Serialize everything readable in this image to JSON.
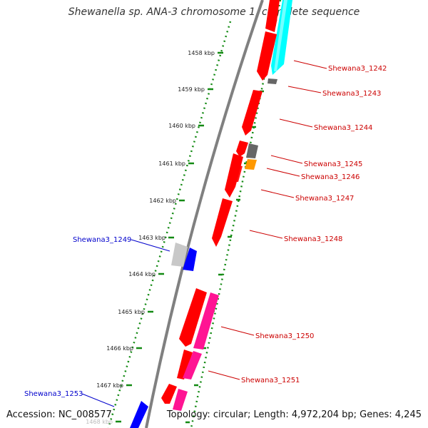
{
  "title": "Shewanella sp. ANA-3 chromosome 1, complete sequence",
  "accession": "Accession: NC_008577",
  "topology": "Topology: circular; Length: 4,972,204 bp; Genes: 4,245",
  "colors": {
    "cds_forward": "#ff0000",
    "cds_reverse": "#ff1493",
    "blue_gene": "#0000ff",
    "cyan_gene": "#00ffff",
    "gray_gene": "#777777",
    "light_gray_gene": "#c8c8c8",
    "orange_gene": "#ff9900",
    "tick_color": "#138a13",
    "label_red": "#cc0000",
    "label_blue": "#0000cc",
    "backbone": "#808080"
  },
  "scale": {
    "unit": "kbp",
    "ticks": [
      "1458 kbp",
      "1459 kbp",
      "1460 kbp",
      "1461 kbp",
      "1462 kbp",
      "1463 kbp",
      "1464 kbp",
      "1465 kbp",
      "1466 kbp",
      "1467 kbp",
      "1468 kbp"
    ]
  },
  "gene_labels": [
    {
      "text": "Shewana3_1242",
      "color": "red"
    },
    {
      "text": "Shewana3_1243",
      "color": "red"
    },
    {
      "text": "Shewana3_1244",
      "color": "red"
    },
    {
      "text": "Shewana3_1245",
      "color": "red"
    },
    {
      "text": "Shewana3_1246",
      "color": "red"
    },
    {
      "text": "Shewana3_1247",
      "color": "red"
    },
    {
      "text": "Shewana3_1248",
      "color": "red"
    },
    {
      "text": "Shewana3_1249",
      "color": "blue"
    },
    {
      "text": "Shewana3_1250",
      "color": "red"
    },
    {
      "text": "Shewana3_1251",
      "color": "red"
    },
    {
      "text": "Shewana3_1253",
      "color": "blue"
    }
  ]
}
